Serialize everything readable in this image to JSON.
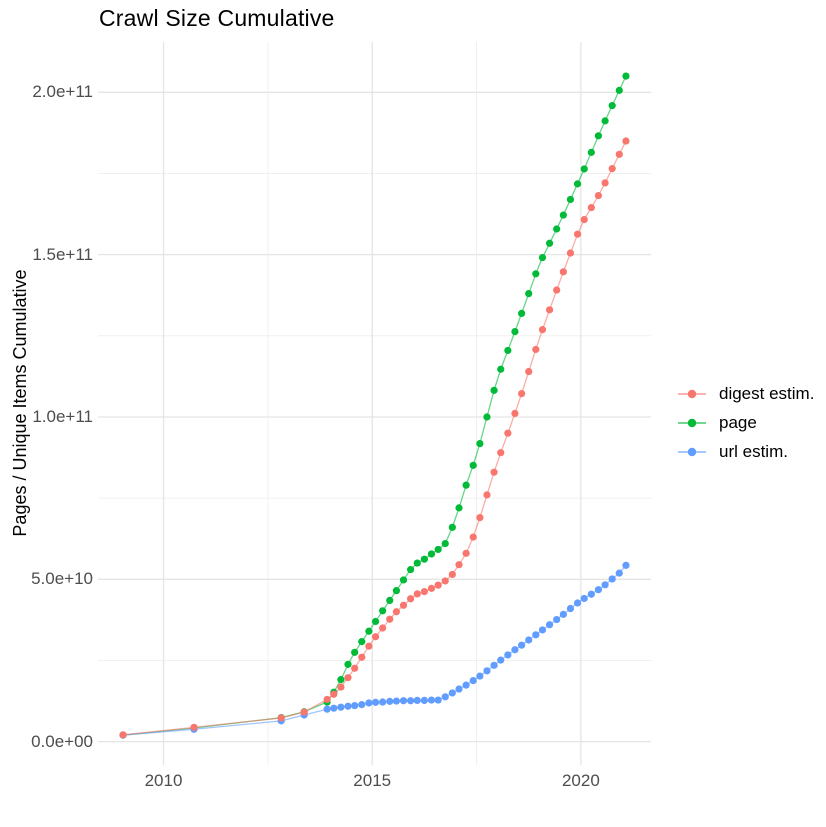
{
  "title": "Crawl Size Cumulative",
  "colors": {
    "digest_estim": "#F8766D",
    "page": "#00BA38",
    "url_estim": "#619CFF",
    "grid_major": "#E5E5E5",
    "grid_minor": "#F0F0F0",
    "tick_text": "#4D4D4D",
    "title_text": "#000000",
    "background": "#FFFFFF"
  },
  "legend": {
    "items": [
      "digest estim.",
      "page",
      "url estim."
    ]
  },
  "chart_data": {
    "type": "line",
    "title": "Crawl Size Cumulative",
    "xlabel": "",
    "ylabel": "Pages / Unique Items Cumulative",
    "grid": true,
    "legend_position": "right-center",
    "x_range": [
      2008.43,
      2021.68
    ],
    "y_range": [
      -7200000000.0,
      215500000000.0
    ],
    "x_ticks": {
      "values": [
        2010,
        2015,
        2020
      ],
      "labels": [
        "2010",
        "2015",
        "2020"
      ],
      "minor": [
        2012.5,
        2017.5
      ]
    },
    "y_ticks": {
      "values": [
        0,
        50000000000.0,
        100000000000.0,
        150000000000.0,
        200000000000.0
      ],
      "labels": [
        "0.0e+00",
        "5.0e+10",
        "1.0e+11",
        "1.5e+11",
        "2.0e+11"
      ],
      "minor": [
        25000000000.0,
        75000000000.0,
        125000000000.0,
        175000000000.0
      ]
    },
    "series": [
      {
        "name": "digest estim.",
        "color": "#F8766D",
        "points": [
          [
            2009.03,
            2100000000.0
          ],
          [
            2010.73,
            4400000000.0
          ],
          [
            2012.82,
            7300000000.0
          ],
          [
            2013.37,
            9100000000.0
          ],
          [
            2013.92,
            13000000000.0
          ],
          [
            2014.08,
            14600000000.0
          ],
          [
            2014.25,
            16800000000.0
          ],
          [
            2014.42,
            19700000000.0
          ],
          [
            2014.58,
            22600000000.0
          ],
          [
            2014.75,
            26000000000.0
          ],
          [
            2014.92,
            29400000000.0
          ],
          [
            2015.08,
            32300000000.0
          ],
          [
            2015.25,
            35000000000.0
          ],
          [
            2015.42,
            37700000000.0
          ],
          [
            2015.58,
            40000000000.0
          ],
          [
            2015.75,
            42000000000.0
          ],
          [
            2015.92,
            44000000000.0
          ],
          [
            2016.08,
            45500000000.0
          ],
          [
            2016.25,
            46200000000.0
          ],
          [
            2016.42,
            47200000000.0
          ],
          [
            2016.58,
            48200000000.0
          ],
          [
            2016.75,
            49500000000.0
          ],
          [
            2016.92,
            51500000000.0
          ],
          [
            2017.08,
            54500000000.0
          ],
          [
            2017.25,
            58000000000.0
          ],
          [
            2017.42,
            63000000000.0
          ],
          [
            2017.58,
            69000000000.0
          ],
          [
            2017.75,
            76000000000.0
          ],
          [
            2017.92,
            83000000000.0
          ],
          [
            2018.08,
            89000000000.0
          ],
          [
            2018.25,
            95000000000.0
          ],
          [
            2018.42,
            101100000000.0
          ],
          [
            2018.58,
            107200000000.0
          ],
          [
            2018.75,
            114000000000.0
          ],
          [
            2018.92,
            120800000000.0
          ],
          [
            2019.08,
            126900000000.0
          ],
          [
            2019.25,
            133000000000.0
          ],
          [
            2019.42,
            139100000000.0
          ],
          [
            2019.58,
            144700000000.0
          ],
          [
            2019.75,
            150500000000.0
          ],
          [
            2019.92,
            156300000000.0
          ],
          [
            2020.08,
            160800000000.0
          ],
          [
            2020.25,
            164500000000.0
          ],
          [
            2020.42,
            168200000000.0
          ],
          [
            2020.58,
            172100000000.0
          ],
          [
            2020.75,
            176500000000.0
          ],
          [
            2020.92,
            180900000000.0
          ],
          [
            2021.08,
            185000000000.0
          ]
        ]
      },
      {
        "name": "page",
        "color": "#00BA38",
        "points": [
          [
            2009.03,
            2000000000.0
          ],
          [
            2010.73,
            4200000000.0
          ],
          [
            2012.82,
            7400000000.0
          ],
          [
            2013.37,
            9200000000.0
          ],
          [
            2013.92,
            12200000000.0
          ],
          [
            2014.08,
            15200000000.0
          ],
          [
            2014.25,
            19100000000.0
          ],
          [
            2014.42,
            23800000000.0
          ],
          [
            2014.58,
            27500000000.0
          ],
          [
            2014.75,
            30800000000.0
          ],
          [
            2014.92,
            34000000000.0
          ],
          [
            2015.08,
            37000000000.0
          ],
          [
            2015.25,
            40300000000.0
          ],
          [
            2015.42,
            43500000000.0
          ],
          [
            2015.58,
            46500000000.0
          ],
          [
            2015.75,
            49800000000.0
          ],
          [
            2015.92,
            53000000000.0
          ],
          [
            2016.08,
            55000000000.0
          ],
          [
            2016.25,
            56200000000.0
          ],
          [
            2016.42,
            57800000000.0
          ],
          [
            2016.58,
            59200000000.0
          ],
          [
            2016.75,
            61000000000.0
          ],
          [
            2016.92,
            66000000000.0
          ],
          [
            2017.08,
            72000000000.0
          ],
          [
            2017.25,
            79000000000.0
          ],
          [
            2017.42,
            85100000000.0
          ],
          [
            2017.58,
            91800000000.0
          ],
          [
            2017.75,
            100000000000.0
          ],
          [
            2017.92,
            108200000000.0
          ],
          [
            2018.08,
            114700000000.0
          ],
          [
            2018.25,
            120500000000.0
          ],
          [
            2018.42,
            126300000000.0
          ],
          [
            2018.58,
            131900000000.0
          ],
          [
            2018.75,
            138000000000.0
          ],
          [
            2018.92,
            144100000000.0
          ],
          [
            2019.08,
            149100000000.0
          ],
          [
            2019.25,
            153500000000.0
          ],
          [
            2019.42,
            157900000000.0
          ],
          [
            2019.58,
            162200000000.0
          ],
          [
            2019.75,
            167000000000.0
          ],
          [
            2019.92,
            171800000000.0
          ],
          [
            2020.08,
            176400000000.0
          ],
          [
            2020.25,
            181500000000.0
          ],
          [
            2020.42,
            186600000000.0
          ],
          [
            2020.58,
            191200000000.0
          ],
          [
            2020.75,
            195900000000.0
          ],
          [
            2020.92,
            200600000000.0
          ],
          [
            2021.08,
            205000000000.0
          ]
        ]
      },
      {
        "name": "url estim.",
        "color": "#619CFF",
        "points": [
          [
            2009.03,
            2000000000.0
          ],
          [
            2010.73,
            3800000000.0
          ],
          [
            2012.82,
            6400000000.0
          ],
          [
            2013.37,
            8200000000.0
          ],
          [
            2013.92,
            10000000000.0
          ],
          [
            2014.08,
            10300000000.0
          ],
          [
            2014.25,
            10600000000.0
          ],
          [
            2014.42,
            10900000000.0
          ],
          [
            2014.58,
            11100000000.0
          ],
          [
            2014.75,
            11400000000.0
          ],
          [
            2014.92,
            11900000000.0
          ],
          [
            2015.08,
            12100000000.0
          ],
          [
            2015.25,
            12200000000.0
          ],
          [
            2015.42,
            12400000000.0
          ],
          [
            2015.58,
            12500000000.0
          ],
          [
            2015.75,
            12600000000.0
          ],
          [
            2015.92,
            12600000000.0
          ],
          [
            2016.08,
            12700000000.0
          ],
          [
            2016.25,
            12700000000.0
          ],
          [
            2016.42,
            12800000000.0
          ],
          [
            2016.58,
            12800000000.0
          ],
          [
            2016.75,
            13800000000.0
          ],
          [
            2016.92,
            15000000000.0
          ],
          [
            2017.08,
            16200000000.0
          ],
          [
            2017.25,
            17400000000.0
          ],
          [
            2017.42,
            18800000000.0
          ],
          [
            2017.58,
            20200000000.0
          ],
          [
            2017.75,
            21800000000.0
          ],
          [
            2017.92,
            23500000000.0
          ],
          [
            2018.08,
            25100000000.0
          ],
          [
            2018.25,
            26700000000.0
          ],
          [
            2018.42,
            28300000000.0
          ],
          [
            2018.58,
            29700000000.0
          ],
          [
            2018.75,
            31300000000.0
          ],
          [
            2018.92,
            32900000000.0
          ],
          [
            2019.08,
            34400000000.0
          ],
          [
            2019.25,
            36000000000.0
          ],
          [
            2019.42,
            37600000000.0
          ],
          [
            2019.58,
            39200000000.0
          ],
          [
            2019.75,
            41000000000.0
          ],
          [
            2019.92,
            42700000000.0
          ],
          [
            2020.08,
            44100000000.0
          ],
          [
            2020.25,
            45400000000.0
          ],
          [
            2020.42,
            46800000000.0
          ],
          [
            2020.58,
            48300000000.0
          ],
          [
            2020.75,
            50100000000.0
          ],
          [
            2020.92,
            51900000000.0
          ],
          [
            2021.08,
            54300000000.0
          ]
        ]
      }
    ]
  }
}
